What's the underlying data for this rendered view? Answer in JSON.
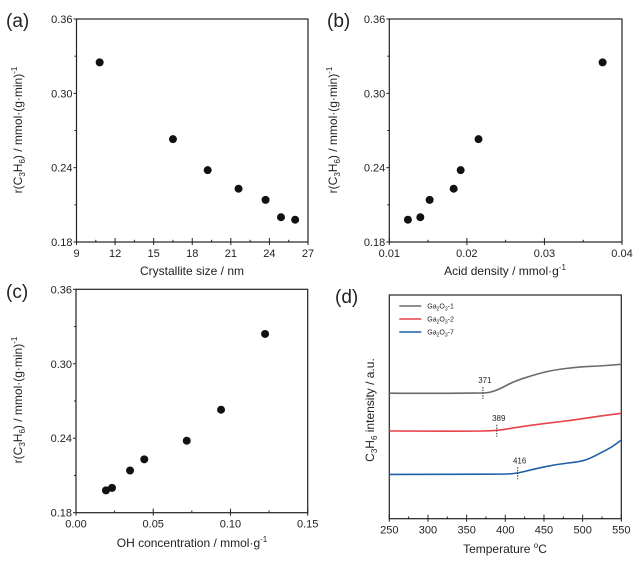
{
  "figure": {
    "description": "Four-panel scientific figure: propane-derived propylene formation rate vs. catalyst properties and C3H6 TPSR profiles"
  },
  "chart_data": [
    {
      "id": "a",
      "panel_label": "(a)",
      "type": "scatter",
      "xlabel": "Crystallite size / nm",
      "ylabel": "r(C3H6) / mmol·(g·min)-1",
      "ylabel_parts": {
        "pre": "r(C",
        "sub1": "3",
        "mid": "H",
        "sub2": "6",
        "post": ") / mmol·(g·min)",
        "sup": "-1"
      },
      "xlim": [
        9,
        27
      ],
      "ylim": [
        0.18,
        0.36
      ],
      "xticks": [
        9,
        12,
        15,
        18,
        21,
        24,
        27
      ],
      "xtick_labels": [
        "9",
        "12",
        "15",
        "18",
        "21",
        "24",
        "27"
      ],
      "yticks": [
        0.18,
        0.24,
        0.3,
        0.36
      ],
      "ytick_labels": [
        "0.18",
        "0.24",
        "0.30",
        "0.36"
      ],
      "x_minor": 1.5,
      "y_minor": 0.03,
      "grid": false,
      "marker_color": "#111111",
      "points": [
        {
          "x": 10.8,
          "y": 0.325
        },
        {
          "x": 16.5,
          "y": 0.263
        },
        {
          "x": 19.2,
          "y": 0.238
        },
        {
          "x": 21.6,
          "y": 0.223
        },
        {
          "x": 23.7,
          "y": 0.214
        },
        {
          "x": 24.9,
          "y": 0.2
        },
        {
          "x": 26.0,
          "y": 0.198
        }
      ]
    },
    {
      "id": "b",
      "panel_label": "(b)",
      "type": "scatter",
      "xlabel": "Acid density / mmol·g-1",
      "xlabel_parts": {
        "pre": "Acid density / mmol·g",
        "sup": "-1"
      },
      "ylabel": "r(C3H6) / mmol·(g·min)-1",
      "ylabel_parts": {
        "pre": "r(C",
        "sub1": "3",
        "mid": "H",
        "sub2": "6",
        "post": ") / mmol·(g·min)",
        "sup": "-1"
      },
      "xlim": [
        0.01,
        0.04
      ],
      "ylim": [
        0.18,
        0.36
      ],
      "xticks": [
        0.01,
        0.02,
        0.03,
        0.04
      ],
      "xtick_labels": [
        "0.01",
        "0.02",
        "0.03",
        "0.04"
      ],
      "yticks": [
        0.18,
        0.24,
        0.3,
        0.36
      ],
      "ytick_labels": [
        "0.18",
        "0.24",
        "0.30",
        "0.36"
      ],
      "x_minor": 0.005,
      "y_minor": 0.03,
      "grid": false,
      "marker_color": "#111111",
      "points": [
        {
          "x": 0.0124,
          "y": 0.198
        },
        {
          "x": 0.014,
          "y": 0.2
        },
        {
          "x": 0.0152,
          "y": 0.214
        },
        {
          "x": 0.0183,
          "y": 0.223
        },
        {
          "x": 0.0192,
          "y": 0.238
        },
        {
          "x": 0.0215,
          "y": 0.263
        },
        {
          "x": 0.0375,
          "y": 0.325
        }
      ]
    },
    {
      "id": "c",
      "panel_label": "(c)",
      "type": "scatter",
      "xlabel": "OH concentration / mmol·g-1",
      "xlabel_parts": {
        "pre": "OH concentration / mmol·g",
        "sup": "-1"
      },
      "ylabel": "r(C3H6) / mmol·(g·min)-1",
      "ylabel_parts": {
        "pre": "r(C",
        "sub1": "3",
        "mid": "H",
        "sub2": "6",
        "post": ") / mmol·(g·min)",
        "sup": "-1"
      },
      "xlim": [
        0.0,
        0.15
      ],
      "ylim": [
        0.18,
        0.36
      ],
      "xticks": [
        0.0,
        0.05,
        0.1,
        0.15
      ],
      "xtick_labels": [
        "0.00",
        "0.05",
        "0.10",
        "0.15"
      ],
      "yticks": [
        0.18,
        0.24,
        0.3,
        0.36
      ],
      "ytick_labels": [
        "0.18",
        "0.24",
        "0.30",
        "0.36"
      ],
      "x_minor": 0.025,
      "y_minor": 0.03,
      "grid": false,
      "marker_color": "#111111",
      "points": [
        {
          "x": 0.0194,
          "y": 0.198
        },
        {
          "x": 0.0233,
          "y": 0.2
        },
        {
          "x": 0.035,
          "y": 0.214
        },
        {
          "x": 0.0442,
          "y": 0.223
        },
        {
          "x": 0.0717,
          "y": 0.238
        },
        {
          "x": 0.0939,
          "y": 0.263
        },
        {
          "x": 0.1224,
          "y": 0.324
        }
      ]
    },
    {
      "id": "d",
      "panel_label": "(d)",
      "type": "line",
      "xlabel": "Temperature oC",
      "xlabel_parts": {
        "pre": "Temperature ",
        "sup": "o",
        "post": "C"
      },
      "ylabel": "C3H6 intensity / a.u.",
      "ylabel_parts": {
        "pre": "C",
        "sub1": "3",
        "mid": "H",
        "sub2": "6",
        "post": " intensity / a.u."
      },
      "xlim": [
        250,
        550
      ],
      "ylim": [
        0,
        100
      ],
      "xticks": [
        250,
        300,
        350,
        400,
        450,
        500,
        550
      ],
      "xtick_labels": [
        "250",
        "300",
        "350",
        "400",
        "450",
        "500",
        "550"
      ],
      "x_minor": 25,
      "yticks": [],
      "grid": false,
      "legend": "top-left",
      "series": [
        {
          "name": "Ga2O3-1",
          "name_parts": {
            "pre": "Ga",
            "sub1": "2",
            "mid": "O",
            "sub2": "3",
            "post": "-1"
          },
          "color": "#6b6b6b",
          "onset": 371,
          "onset_label": "371",
          "x": [
            250,
            300,
            350,
            371,
            380,
            393,
            410,
            436,
            462,
            497,
            520,
            550
          ],
          "y": [
            56.1,
            56.0,
            56.1,
            56.2,
            56.4,
            58.0,
            61.2,
            64.2,
            66.5,
            67.9,
            68.2,
            69.0
          ]
        },
        {
          "name": "Ga2O3-2",
          "name_parts": {
            "pre": "Ga",
            "sub1": "2",
            "mid": "O",
            "sub2": "3",
            "post": "-2"
          },
          "color": "#e8414a",
          "onset": 389,
          "onset_label": "389",
          "x": [
            250,
            300,
            350,
            389,
            410,
            436,
            460,
            488,
            520,
            550
          ],
          "y": [
            39.2,
            39.1,
            39.1,
            39.3,
            40.6,
            41.9,
            42.9,
            44.1,
            45.8,
            47.1
          ]
        },
        {
          "name": "Ga2O3-7",
          "name_parts": {
            "pre": "Ga",
            "sub1": "2",
            "mid": "O",
            "sub2": "3",
            "post": "-7"
          },
          "color": "#1f5fa8",
          "onset": 416,
          "onset_label": "416",
          "x": [
            250,
            300,
            350,
            400,
            416,
            436,
            466,
            497,
            510,
            522,
            537,
            550
          ],
          "y": [
            19.8,
            19.8,
            19.9,
            19.9,
            20.3,
            22.1,
            24.3,
            25.5,
            27.0,
            29.2,
            31.8,
            35.2
          ]
        }
      ]
    }
  ]
}
